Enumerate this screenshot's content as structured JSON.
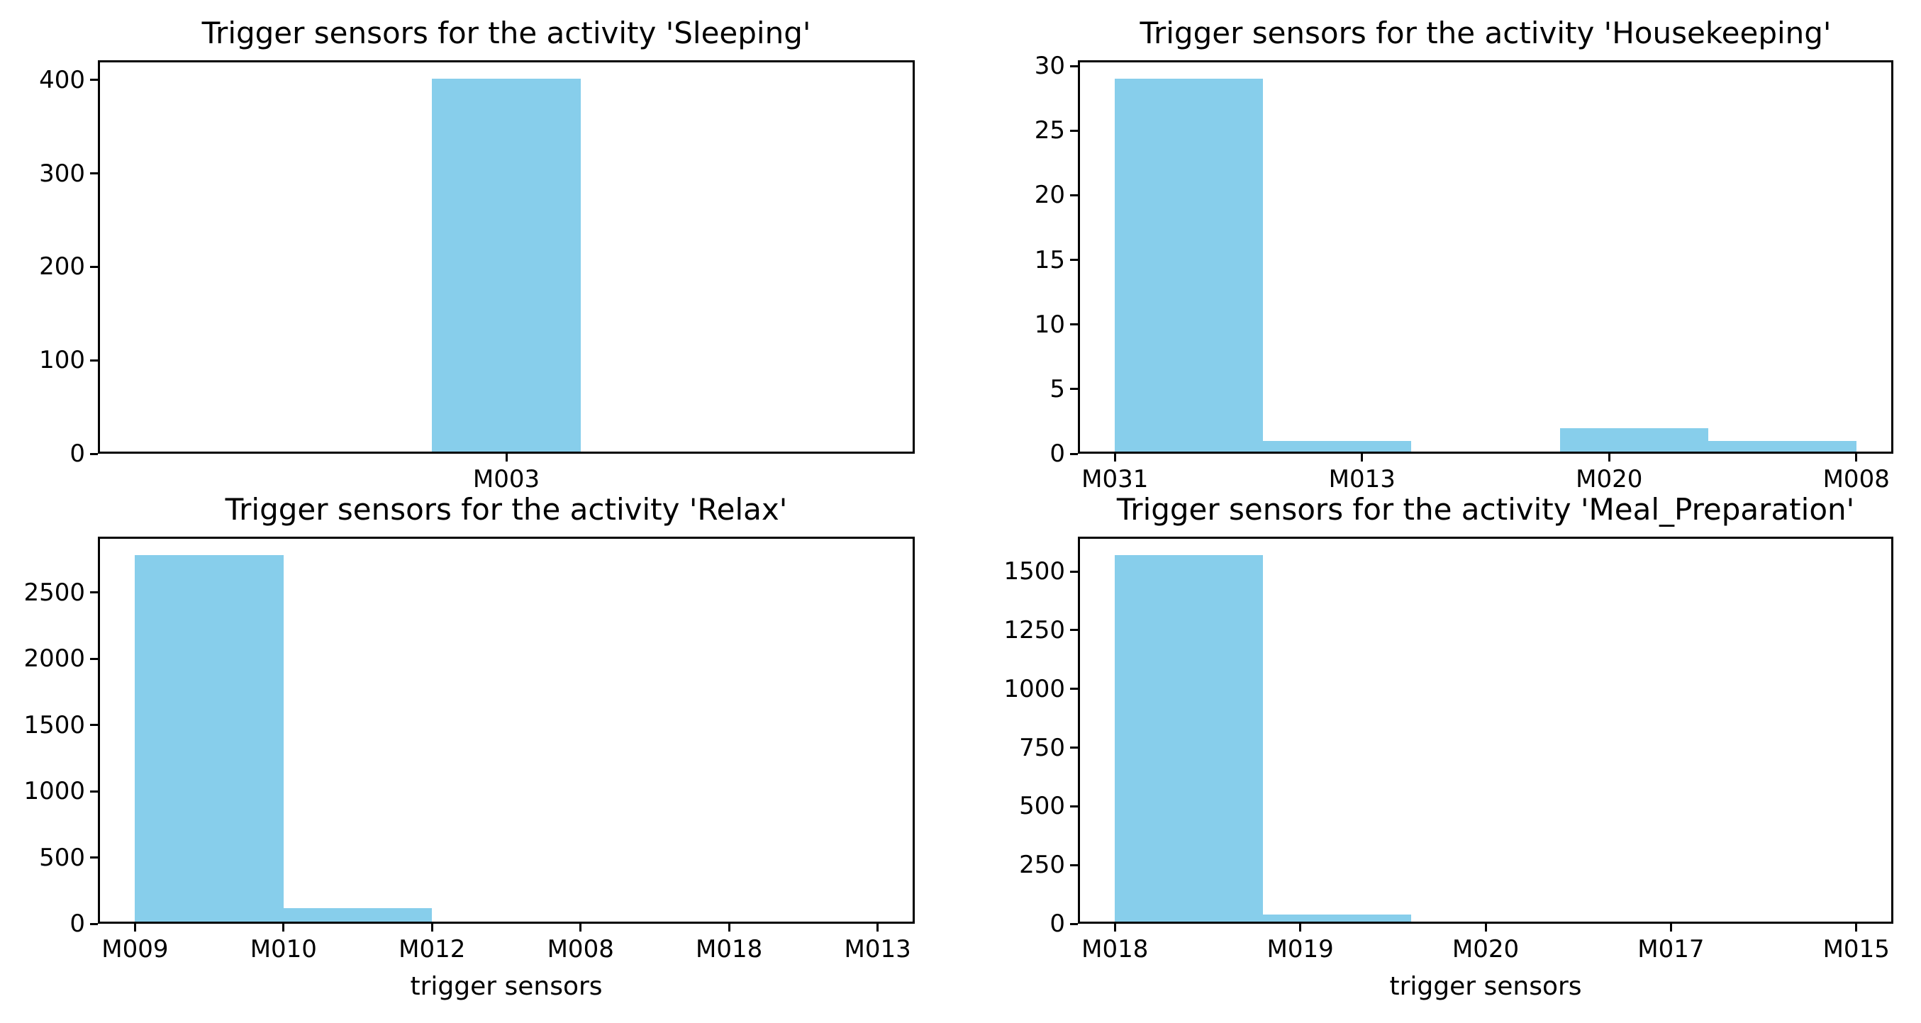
{
  "figure": {
    "background_color": "#ffffff",
    "text_color": "#000000",
    "axis_color": "#000000"
  },
  "chart_data": [
    {
      "type": "bar",
      "variant": "histogram",
      "title": "Trigger sensors for the activity 'Sleeping'",
      "xlabel": "",
      "ylabel": "",
      "bar_color": "#87ceeb",
      "grid": false,
      "legend": null,
      "categories": [
        "M003"
      ],
      "values": [
        401
      ],
      "xlim": [
        -0.55,
        0.55
      ],
      "ylim": [
        0,
        421
      ],
      "yticks": [
        0,
        100,
        200,
        300,
        400
      ],
      "xtick_positions": [
        0
      ],
      "xtick_labels": [
        "M003"
      ],
      "bin_edges": [
        -0.1,
        0.1
      ],
      "bin_counts": [
        401
      ]
    },
    {
      "type": "bar",
      "variant": "histogram",
      "title": "Trigger sensors for the activity 'Housekeeping'",
      "xlabel": "",
      "ylabel": "",
      "bar_color": "#87ceeb",
      "grid": false,
      "legend": null,
      "categories": [
        "M031",
        "M013",
        "M020",
        "M008"
      ],
      "values": [
        29,
        1,
        2,
        1
      ],
      "xlim": [
        -0.15,
        3.15
      ],
      "ylim": [
        0,
        30.45
      ],
      "yticks": [
        0,
        5,
        10,
        15,
        20,
        25,
        30
      ],
      "xtick_positions": [
        0,
        1,
        2,
        3
      ],
      "xtick_labels": [
        "M031",
        "M013",
        "M020",
        "M008"
      ],
      "bin_edges": [
        0,
        0.6,
        1.2,
        1.8,
        2.4,
        3.0
      ],
      "bin_counts": [
        29,
        1,
        0,
        2,
        1
      ]
    },
    {
      "type": "bar",
      "variant": "histogram",
      "title": "Trigger sensors for the activity 'Relax'",
      "xlabel": "trigger sensors",
      "ylabel": "",
      "bar_color": "#87ceeb",
      "grid": false,
      "legend": null,
      "categories": [
        "M009",
        "M010",
        "M012",
        "M008",
        "M018",
        "M013"
      ],
      "values": [
        2780,
        120,
        15,
        0,
        0,
        0
      ],
      "xlim": [
        -0.25,
        5.25
      ],
      "ylim": [
        0,
        2920
      ],
      "yticks": [
        0,
        500,
        1000,
        1500,
        2000,
        2500
      ],
      "xtick_positions": [
        0,
        1,
        2,
        3,
        4,
        5
      ],
      "xtick_labels": [
        "M009",
        "M010",
        "M012",
        "M008",
        "M018",
        "M013"
      ],
      "bin_edges": [
        0,
        1,
        2,
        3,
        4,
        5
      ],
      "bin_counts": [
        2780,
        120,
        15,
        0,
        0
      ]
    },
    {
      "type": "bar",
      "variant": "histogram",
      "title": "Trigger sensors for the activity 'Meal_Preparation'",
      "xlabel": "trigger sensors",
      "ylabel": "",
      "bar_color": "#87ceeb",
      "grid": false,
      "legend": null,
      "categories": [
        "M018",
        "M019",
        "M020",
        "M017",
        "M015"
      ],
      "values": [
        1570,
        40,
        0,
        0,
        0
      ],
      "xlim": [
        -0.2,
        4.2
      ],
      "ylim": [
        0,
        1648
      ],
      "yticks": [
        0,
        250,
        500,
        750,
        1000,
        1250,
        1500
      ],
      "xtick_positions": [
        0,
        1,
        2,
        3,
        4
      ],
      "xtick_labels": [
        "M018",
        "M019",
        "M020",
        "M017",
        "M015"
      ],
      "bin_edges": [
        0,
        0.8,
        1.6,
        2.4,
        3.2,
        4.0
      ],
      "bin_counts": [
        1570,
        40,
        0,
        0,
        0
      ]
    }
  ]
}
